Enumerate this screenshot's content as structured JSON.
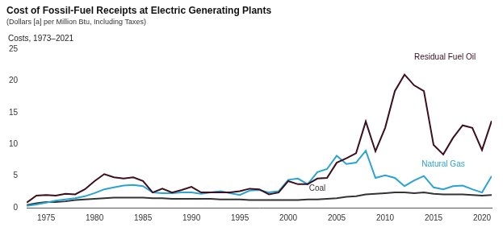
{
  "chart_data": {
    "type": "line",
    "title": "Cost of Fossil-Fuel Receipts at Electric Generating Plants",
    "subtitle": "(Dollars [a] per Million Btu, Including Taxes)",
    "y_label": "Costs, 1973–2021",
    "x": [
      1973,
      1974,
      1975,
      1976,
      1977,
      1978,
      1979,
      1980,
      1981,
      1982,
      1983,
      1984,
      1985,
      1986,
      1987,
      1988,
      1989,
      1990,
      1991,
      1992,
      1993,
      1994,
      1995,
      1996,
      1997,
      1998,
      1999,
      2000,
      2001,
      2002,
      2003,
      2004,
      2005,
      2006,
      2007,
      2008,
      2009,
      2010,
      2011,
      2012,
      2013,
      2014,
      2015,
      2016,
      2017,
      2018,
      2019,
      2020,
      2021
    ],
    "xlim": [
      1973,
      2021
    ],
    "xticks": [
      1975,
      1980,
      1985,
      1990,
      1995,
      2000,
      2005,
      2010,
      2015,
      2020
    ],
    "ylim": [
      0,
      25
    ],
    "yticks": [
      0,
      5,
      10,
      15,
      20,
      25
    ],
    "grid": false,
    "series": [
      {
        "name": "Residual Fuel Oil",
        "color": "#3b0f1c",
        "values": [
          0.8,
          1.9,
          2.0,
          1.9,
          2.2,
          2.1,
          2.9,
          4.2,
          5.3,
          4.8,
          4.6,
          4.8,
          4.2,
          2.4,
          3.0,
          2.4,
          2.8,
          3.3,
          2.4,
          2.4,
          2.4,
          2.4,
          2.6,
          3.0,
          2.9,
          2.1,
          2.4,
          4.2,
          3.7,
          3.7,
          4.6,
          4.7,
          7.1,
          7.8,
          8.6,
          13.6,
          8.9,
          12.6,
          18.4,
          21.0,
          19.3,
          18.4,
          9.9,
          8.4,
          11.0,
          13.0,
          12.6,
          9.1,
          13.7
        ]
      },
      {
        "name": "Natural Gas",
        "color": "#29a3d4",
        "values": [
          0.3,
          0.5,
          0.8,
          1.1,
          1.3,
          1.5,
          1.8,
          2.3,
          2.9,
          3.2,
          3.5,
          3.6,
          3.4,
          2.4,
          2.3,
          2.3,
          2.4,
          2.4,
          2.2,
          2.4,
          2.6,
          2.3,
          2.0,
          2.7,
          2.8,
          2.4,
          2.6,
          4.4,
          4.6,
          3.7,
          5.6,
          6.1,
          8.2,
          6.9,
          7.1,
          9.0,
          4.7,
          5.1,
          4.7,
          3.4,
          4.3,
          5.0,
          3.2,
          2.9,
          3.4,
          3.5,
          2.9,
          2.4,
          5.0
        ]
      },
      {
        "name": "Coal",
        "color": "#333333",
        "values": [
          0.4,
          0.7,
          0.9,
          0.9,
          1.0,
          1.2,
          1.3,
          1.4,
          1.5,
          1.6,
          1.6,
          1.6,
          1.6,
          1.5,
          1.5,
          1.4,
          1.4,
          1.4,
          1.4,
          1.4,
          1.3,
          1.3,
          1.3,
          1.2,
          1.2,
          1.2,
          1.2,
          1.2,
          1.2,
          1.3,
          1.3,
          1.4,
          1.5,
          1.7,
          1.8,
          2.1,
          2.2,
          2.3,
          2.4,
          2.4,
          2.3,
          2.4,
          2.2,
          2.1,
          2.1,
          2.1,
          2.0,
          1.9,
          2.0
        ]
      }
    ]
  }
}
